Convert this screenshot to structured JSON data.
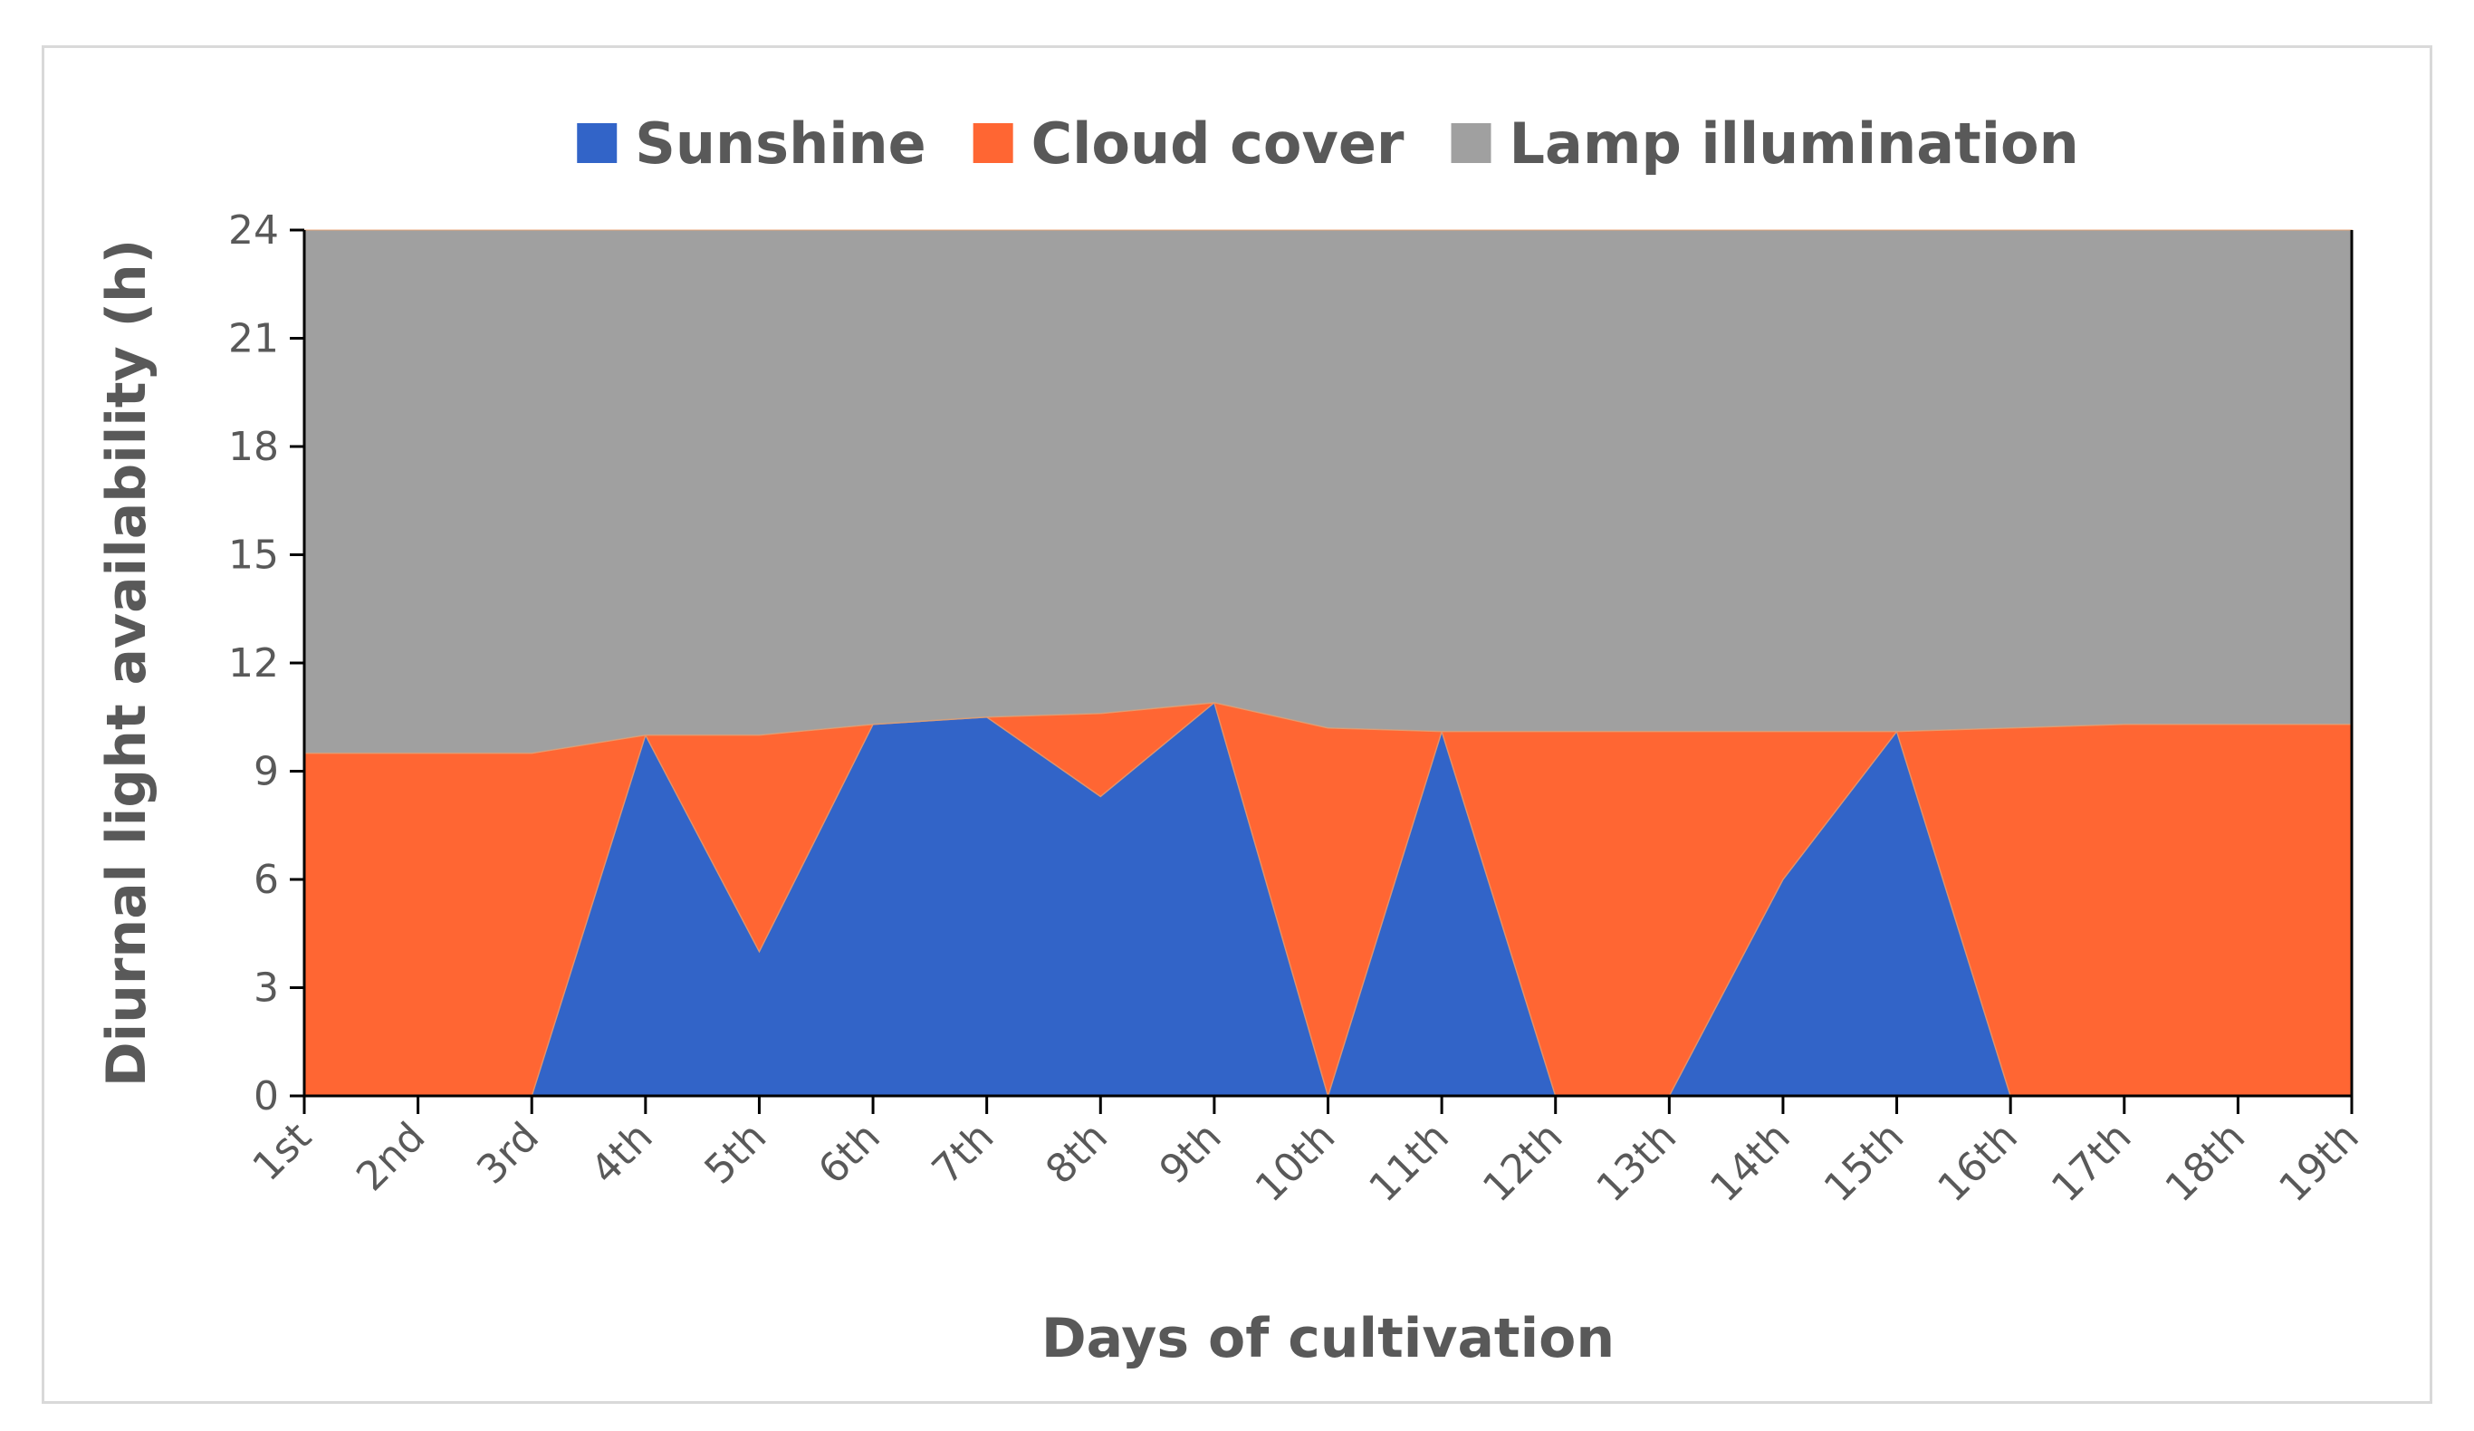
{
  "chart_data": {
    "type": "area",
    "stacked": true,
    "xlabel": "Days of cultivation",
    "ylabel": "Diurnal light availability (h)",
    "ylim": [
      0,
      24
    ],
    "yticks": [
      0,
      3,
      6,
      9,
      12,
      15,
      18,
      21,
      24
    ],
    "legend_position": "top",
    "grid": false,
    "categories": [
      "1st",
      "2nd",
      "3rd",
      "4th",
      "5th",
      "6th",
      "7th",
      "8th",
      "9th",
      "10th",
      "11th",
      "12th",
      "13th",
      "14th",
      "15th",
      "16th",
      "17th",
      "18th",
      "19th"
    ],
    "series": [
      {
        "name": "Sunshine",
        "color": "#3264C8",
        "values": [
          0,
          0,
          0,
          10.0,
          4.0,
          10.3,
          10.5,
          8.3,
          10.9,
          0,
          10.1,
          0,
          0,
          6.0,
          10.1,
          0,
          0,
          0,
          0
        ]
      },
      {
        "name": "Cloud cover",
        "color": "#FF6633",
        "values": [
          9.5,
          9.5,
          9.5,
          0,
          6.0,
          0,
          0,
          2.3,
          0,
          10.2,
          0,
          10.1,
          10.1,
          4.1,
          0,
          10.2,
          10.3,
          10.3,
          10.3
        ]
      },
      {
        "name": "Lamp illumination",
        "color": "#A0A0A0",
        "values": [
          14.5,
          14.5,
          14.5,
          14.0,
          14.0,
          13.7,
          13.5,
          13.4,
          13.1,
          13.8,
          13.9,
          13.9,
          13.9,
          13.9,
          13.9,
          13.8,
          13.7,
          13.7,
          13.7
        ]
      }
    ]
  }
}
